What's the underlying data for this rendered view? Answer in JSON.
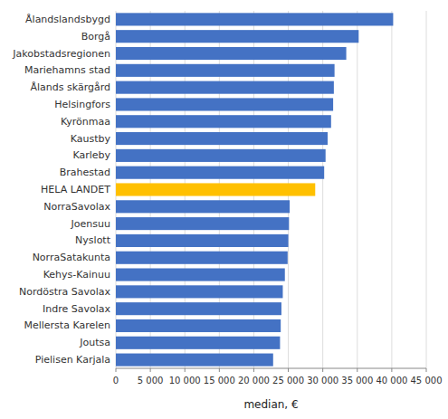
{
  "chart_data": {
    "type": "bar",
    "orientation": "horizontal",
    "xlabel": "median, €",
    "categories": [
      "Pielisen Karjala",
      "Joutsa",
      "Mellersta Karelen",
      "Indre Savolax",
      "Nordöstra Savolax",
      "Kehys-Kainuu",
      "NorraSatakunta",
      "Nyslott",
      "Joensuu",
      "NorraSavolax",
      "HELA LANDET",
      "Brahestad",
      "Karleby",
      "Kaustby",
      "Kyrönmaa",
      "Helsingfors",
      "Ålands skärgård",
      "Mariehamns stad",
      "Jakobstadsregionen",
      "Borgå",
      "Ålandslandsbygd"
    ],
    "values": [
      22800,
      23800,
      23900,
      24000,
      24200,
      24500,
      24900,
      25000,
      25100,
      25200,
      28900,
      30200,
      30400,
      30700,
      31200,
      31500,
      31600,
      31700,
      33400,
      35200,
      40200
    ],
    "colors": [
      "#4472C4",
      "#4472C4",
      "#4472C4",
      "#4472C4",
      "#4472C4",
      "#4472C4",
      "#4472C4",
      "#4472C4",
      "#4472C4",
      "#4472C4",
      "#FFC000",
      "#4472C4",
      "#4472C4",
      "#4472C4",
      "#4472C4",
      "#4472C4",
      "#4472C4",
      "#4472C4",
      "#4472C4",
      "#4472C4",
      "#4472C4"
    ],
    "xlim": [
      0,
      45000
    ],
    "xticks": [
      0,
      {
        "value": 5000,
        "label": "5 000"
      },
      {
        "value": 10000,
        "label": "10 000"
      },
      {
        "value": 15000,
        "label": "15 000"
      },
      {
        "value": 20000,
        "label": "20 000"
      },
      {
        "value": 25000,
        "label": "25 000"
      },
      {
        "value": 30000,
        "label": "30 000"
      },
      {
        "value": 35000,
        "label": "35 000"
      },
      {
        "value": 40000,
        "label": "40 000"
      },
      {
        "value": 45000,
        "label": "45 000"
      }
    ],
    "grid": true
  }
}
